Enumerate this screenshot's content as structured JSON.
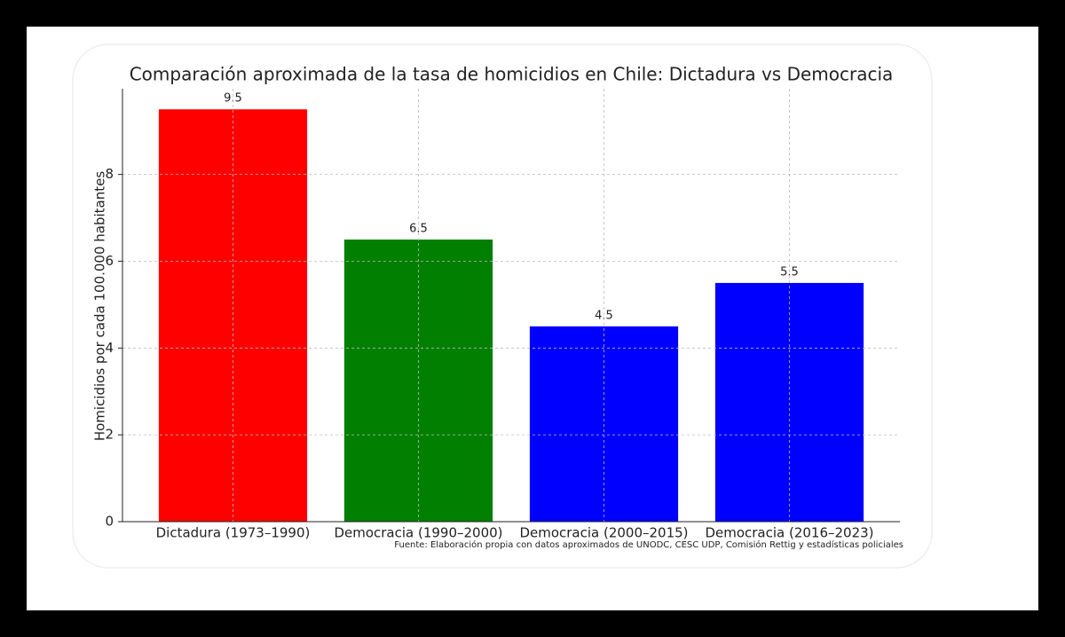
{
  "chart_data": {
    "type": "bar",
    "title": "Comparación aproximada de la tasa de homicidios en Chile: Dictadura vs Democracia",
    "y_label": "Homicidios por cada 100.000 habitantes",
    "note": "Fuente: Elaboración propia con datos aproximados de UNODC, CESC UDP, Comisión Rettig y estadísticas policiales",
    "categories": [
      "Dictadura (1973–1990)",
      "Democracia (1990–2000)",
      "Democracia (2000–2015)",
      "Democracia (2016–2023)"
    ],
    "values": [
      9.5,
      6.5,
      4.5,
      5.5
    ],
    "colors": [
      "#ff0000",
      "#007f00",
      "#0000ff",
      "#0000ff"
    ],
    "ylim": [
      0,
      9.975
    ],
    "yticks": [
      0,
      2,
      4,
      6,
      8
    ],
    "grid": true
  }
}
